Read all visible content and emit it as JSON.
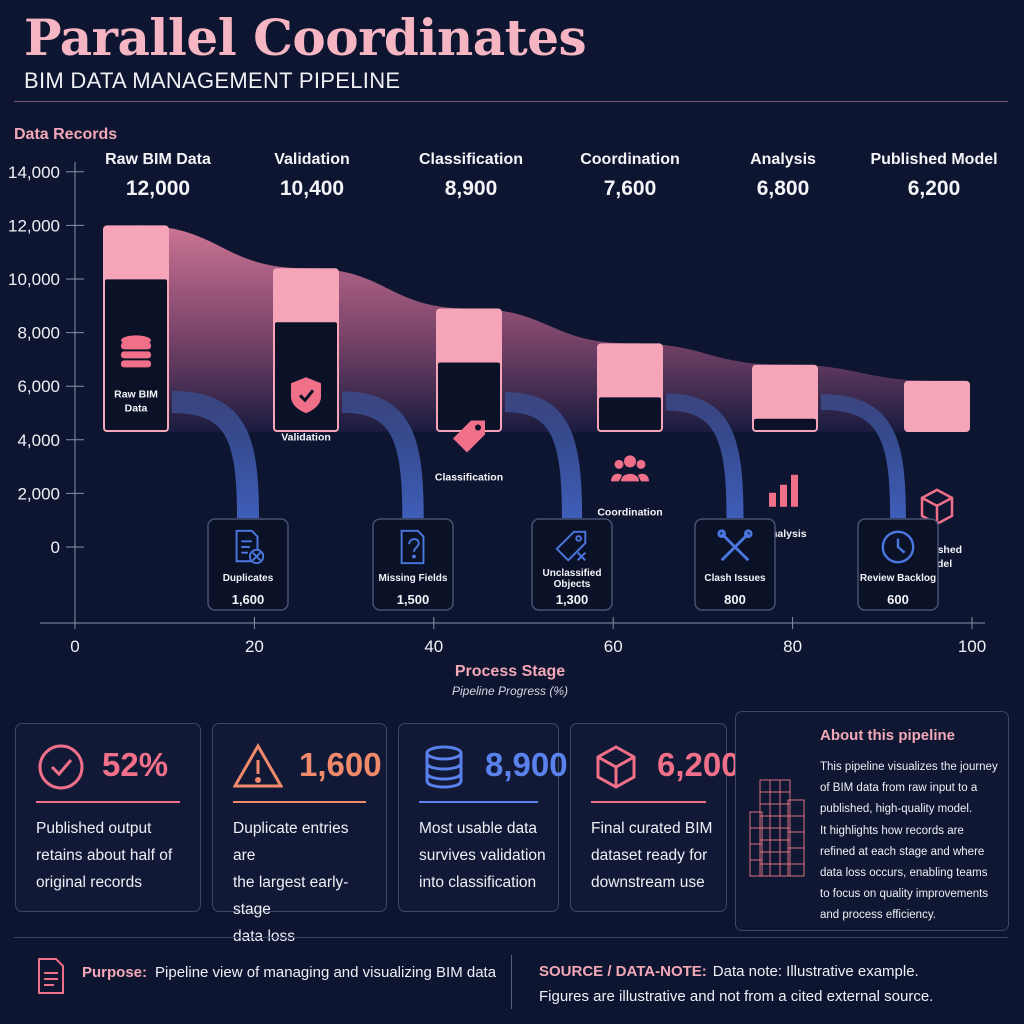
{
  "header": {
    "title": "Parallel Coordinates",
    "subtitle": "BIM DATA MANAGEMENT PIPELINE"
  },
  "colors": {
    "background": "#0e1530",
    "accent_pink": "#f3a8b8",
    "card_bg": "#0b1228",
    "loss_blue": "#4a6fd8",
    "warning_orange": "#f08a6a"
  },
  "chart_data": {
    "type": "area",
    "ylabel": "Data Records",
    "yticks": [
      "0",
      "2,000",
      "4,000",
      "6,000",
      "8,000",
      "10,000",
      "12,000",
      "14,000"
    ],
    "ylim": [
      0,
      14000
    ],
    "xlabel": "Process Stage",
    "xsublabel": "Pipeline Progress (%)",
    "xticks": [
      "0",
      "20",
      "40",
      "60",
      "80",
      "100"
    ],
    "xlim": [
      0,
      100
    ],
    "grid": false,
    "stages": [
      {
        "name": "Raw BIM Data",
        "value_label": "12,000",
        "value": 12000,
        "card_label": "Raw BIM Data",
        "icon": "database-icon"
      },
      {
        "name": "Validation",
        "value_label": "10,400",
        "value": 10400,
        "card_label": "Validation",
        "icon": "shield-check-icon"
      },
      {
        "name": "Classification",
        "value_label": "8,900",
        "value": 8900,
        "card_label": "Classification",
        "icon": "tag-icon"
      },
      {
        "name": "Coordination",
        "value_label": "7,600",
        "value": 7600,
        "card_label": "Coordination",
        "icon": "team-icon"
      },
      {
        "name": "Analysis",
        "value_label": "6,800",
        "value": 6800,
        "card_label": "Analysis",
        "icon": "bar-chart-icon"
      },
      {
        "name": "Published Model",
        "value_label": "6,200",
        "value": 6200,
        "card_label": "Published Model",
        "icon": "cube-icon"
      }
    ],
    "losses": [
      {
        "label": "Duplicates",
        "value_label": "1,600",
        "value": 1600,
        "icon": "document-x-icon"
      },
      {
        "label": "Missing Fields",
        "value_label": "1,500",
        "value": 1500,
        "icon": "document-question-icon"
      },
      {
        "label": "Unclassified Objects",
        "value_label": "1,300",
        "value": 1300,
        "icon": "tag-x-icon"
      },
      {
        "label": "Clash Issues",
        "value_label": "800",
        "value": 800,
        "icon": "tools-cross-icon"
      },
      {
        "label": "Review Backlog",
        "value_label": "600",
        "value": 600,
        "icon": "clock-icon"
      }
    ]
  },
  "kpis": [
    {
      "value": "52%",
      "desc": [
        "Published output",
        "retains about half of",
        "original records"
      ],
      "color": "#f0708a",
      "icon": "check-circle-icon"
    },
    {
      "value": "1,600",
      "desc": [
        "Duplicate entries are",
        "the largest early-stage",
        "data loss"
      ],
      "color": "#f08a6a",
      "icon": "warning-icon"
    },
    {
      "value": "8,900",
      "desc": [
        "Most usable data",
        "survives validation",
        "into classification"
      ],
      "color": "#5a82ec",
      "icon": "database-icon"
    },
    {
      "value": "6,200",
      "desc": [
        "Final curated BIM",
        "dataset ready for",
        "downstream use"
      ],
      "color": "#f0708a",
      "icon": "cube-icon"
    }
  ],
  "about": {
    "title": "About this pipeline",
    "lines": [
      "This pipeline visualizes the journey",
      "of BIM data from raw input to a",
      "published, high-quality model.",
      "It highlights how records are",
      "refined at each stage and where",
      "data loss occurs, enabling teams",
      "to focus on quality improvements",
      "and process efficiency."
    ]
  },
  "footer": {
    "purpose_key": "Purpose:",
    "purpose_text": "Pipeline view of managing and visualizing BIM data",
    "source_key": "SOURCE / DATA-NOTE:",
    "source_text1": "Data note: Illustrative example.",
    "source_text2": "Figures are illustrative and not from a cited external source."
  }
}
